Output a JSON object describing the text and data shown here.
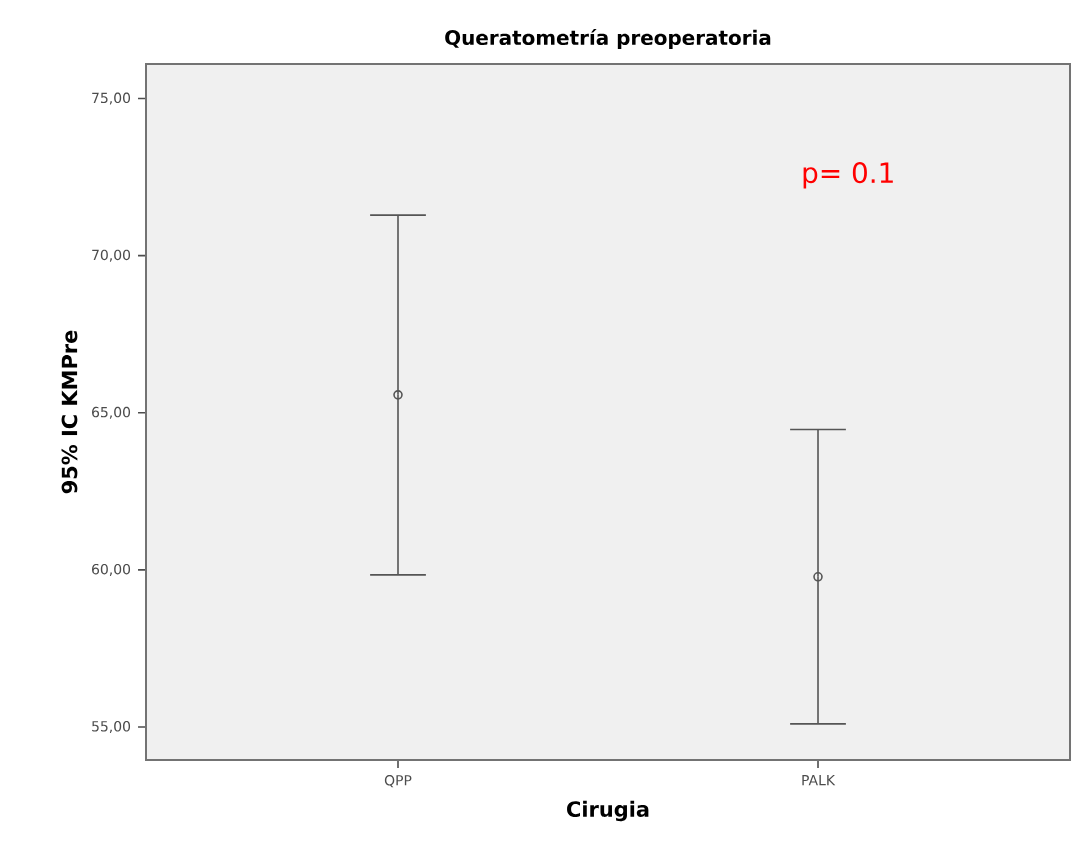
{
  "chart_data": {
    "type": "scatter",
    "title": "Queratometría preoperatoria",
    "xlabel": "Cirugia",
    "ylabel": "95% IC KMPre",
    "categories": [
      "QPP",
      "PALK"
    ],
    "values": [
      65.57,
      59.78
    ],
    "errors": [
      [
        59.84,
        71.29
      ],
      [
        55.1,
        64.47
      ]
    ],
    "color": "#555555",
    "marker": "circle",
    "ylim": [
      53.95,
      76.1
    ],
    "yticks": [
      {
        "value": 55,
        "label": "55,00"
      },
      {
        "value": 60,
        "label": "60,00"
      },
      {
        "value": 65,
        "label": "65,00"
      },
      {
        "value": 70,
        "label": "70,00"
      },
      {
        "value": 75,
        "label": "75,00"
      }
    ],
    "annotations": [
      "p= 0.1"
    ],
    "grid": false
  }
}
